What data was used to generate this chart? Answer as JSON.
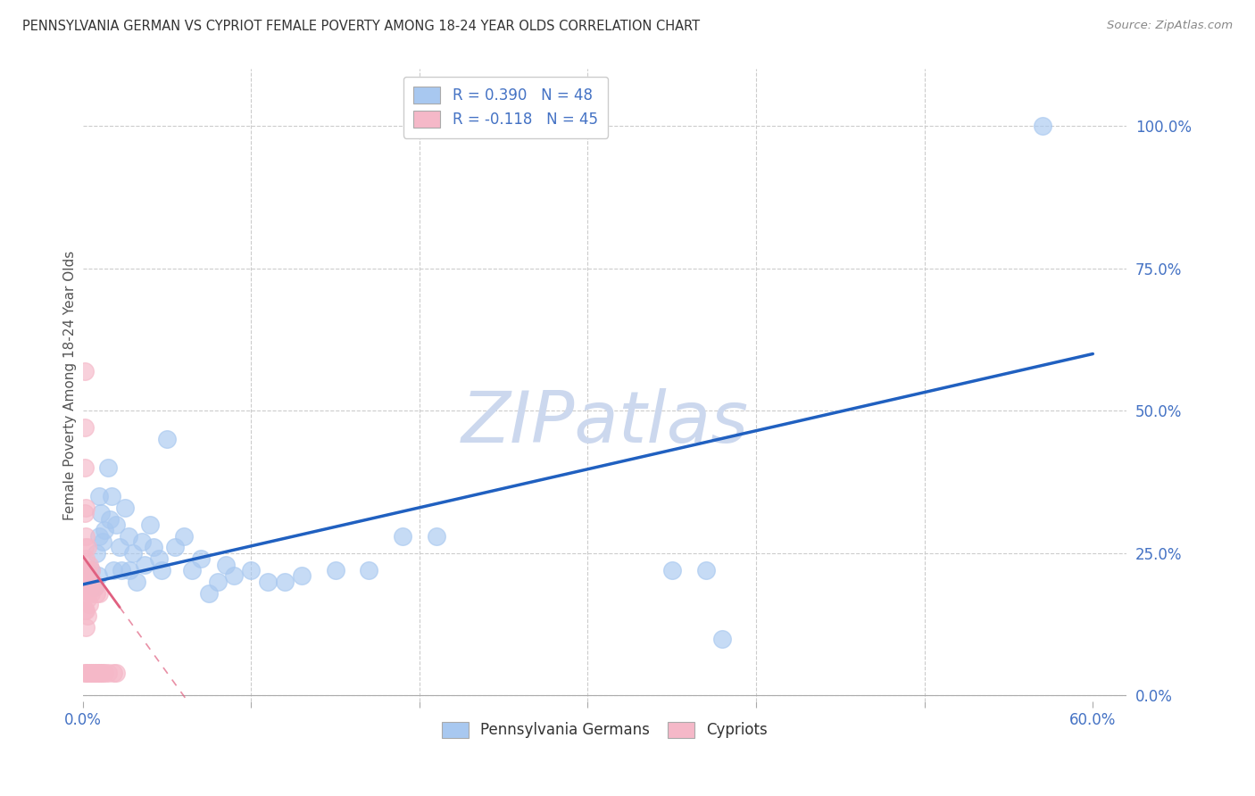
{
  "title": "PENNSYLVANIA GERMAN VS CYPRIOT FEMALE POVERTY AMONG 18-24 YEAR OLDS CORRELATION CHART",
  "source": "Source: ZipAtlas.com",
  "ylabel": "Female Poverty Among 18-24 Year Olds",
  "xlim": [
    0.0,
    0.62
  ],
  "ylim": [
    -0.01,
    1.1
  ],
  "xticks": [
    0.0,
    0.1,
    0.2,
    0.3,
    0.4,
    0.5,
    0.6
  ],
  "yticks_right": [
    0.0,
    0.25,
    0.5,
    0.75,
    1.0
  ],
  "yticklabels_right": [
    "0.0%",
    "25.0%",
    "50.0%",
    "75.0%",
    "100.0%"
  ],
  "series1_name": "Pennsylvania Germans",
  "series1_color": "#a8c8f0",
  "series1_R": 0.39,
  "series1_N": 48,
  "series1_line_color": "#2060c0",
  "series2_name": "Cypriots",
  "series2_color": "#f5b8c8",
  "series2_R": -0.118,
  "series2_N": 45,
  "series2_line_color": "#e06080",
  "background_color": "#ffffff",
  "grid_color": "#cccccc",
  "title_color": "#333333",
  "axis_label_color": "#4472c4",
  "watermark_color": "#ccd8ee",
  "scatter1_x": [
    0.005,
    0.007,
    0.008,
    0.009,
    0.01,
    0.01,
    0.011,
    0.012,
    0.013,
    0.015,
    0.016,
    0.017,
    0.018,
    0.02,
    0.022,
    0.023,
    0.025,
    0.027,
    0.028,
    0.03,
    0.032,
    0.035,
    0.037,
    0.04,
    0.042,
    0.045,
    0.047,
    0.05,
    0.055,
    0.06,
    0.065,
    0.07,
    0.075,
    0.08,
    0.085,
    0.09,
    0.1,
    0.11,
    0.12,
    0.13,
    0.15,
    0.17,
    0.19,
    0.21,
    0.35,
    0.37,
    0.38,
    0.57
  ],
  "scatter1_y": [
    0.22,
    0.19,
    0.25,
    0.21,
    0.28,
    0.35,
    0.32,
    0.27,
    0.29,
    0.4,
    0.31,
    0.35,
    0.22,
    0.3,
    0.26,
    0.22,
    0.33,
    0.28,
    0.22,
    0.25,
    0.2,
    0.27,
    0.23,
    0.3,
    0.26,
    0.24,
    0.22,
    0.45,
    0.26,
    0.28,
    0.22,
    0.24,
    0.18,
    0.2,
    0.23,
    0.21,
    0.22,
    0.2,
    0.2,
    0.21,
    0.22,
    0.22,
    0.28,
    0.28,
    0.22,
    0.22,
    0.1,
    1.0
  ],
  "scatter2_x": [
    0.001,
    0.001,
    0.001,
    0.001,
    0.001,
    0.001,
    0.001,
    0.001,
    0.001,
    0.002,
    0.002,
    0.002,
    0.002,
    0.002,
    0.002,
    0.002,
    0.002,
    0.003,
    0.003,
    0.003,
    0.003,
    0.003,
    0.003,
    0.004,
    0.004,
    0.004,
    0.004,
    0.005,
    0.005,
    0.005,
    0.006,
    0.006,
    0.007,
    0.007,
    0.008,
    0.008,
    0.009,
    0.01,
    0.01,
    0.011,
    0.012,
    0.013,
    0.015,
    0.018,
    0.02
  ],
  "scatter2_y": [
    0.57,
    0.47,
    0.4,
    0.32,
    0.26,
    0.22,
    0.19,
    0.15,
    0.04,
    0.33,
    0.28,
    0.24,
    0.21,
    0.18,
    0.15,
    0.12,
    0.04,
    0.26,
    0.22,
    0.2,
    0.17,
    0.14,
    0.04,
    0.23,
    0.19,
    0.16,
    0.04,
    0.22,
    0.18,
    0.04,
    0.2,
    0.04,
    0.19,
    0.04,
    0.18,
    0.04,
    0.04,
    0.18,
    0.04,
    0.04,
    0.04,
    0.04,
    0.04,
    0.04,
    0.04
  ],
  "trendline1_x0": 0.0,
  "trendline1_y0": 0.195,
  "trendline1_x1": 0.6,
  "trendline1_y1": 0.6,
  "trendline2_x0": 0.0,
  "trendline2_y0": 0.245,
  "trendline2_x1": 0.022,
  "trendline2_y1": 0.155
}
